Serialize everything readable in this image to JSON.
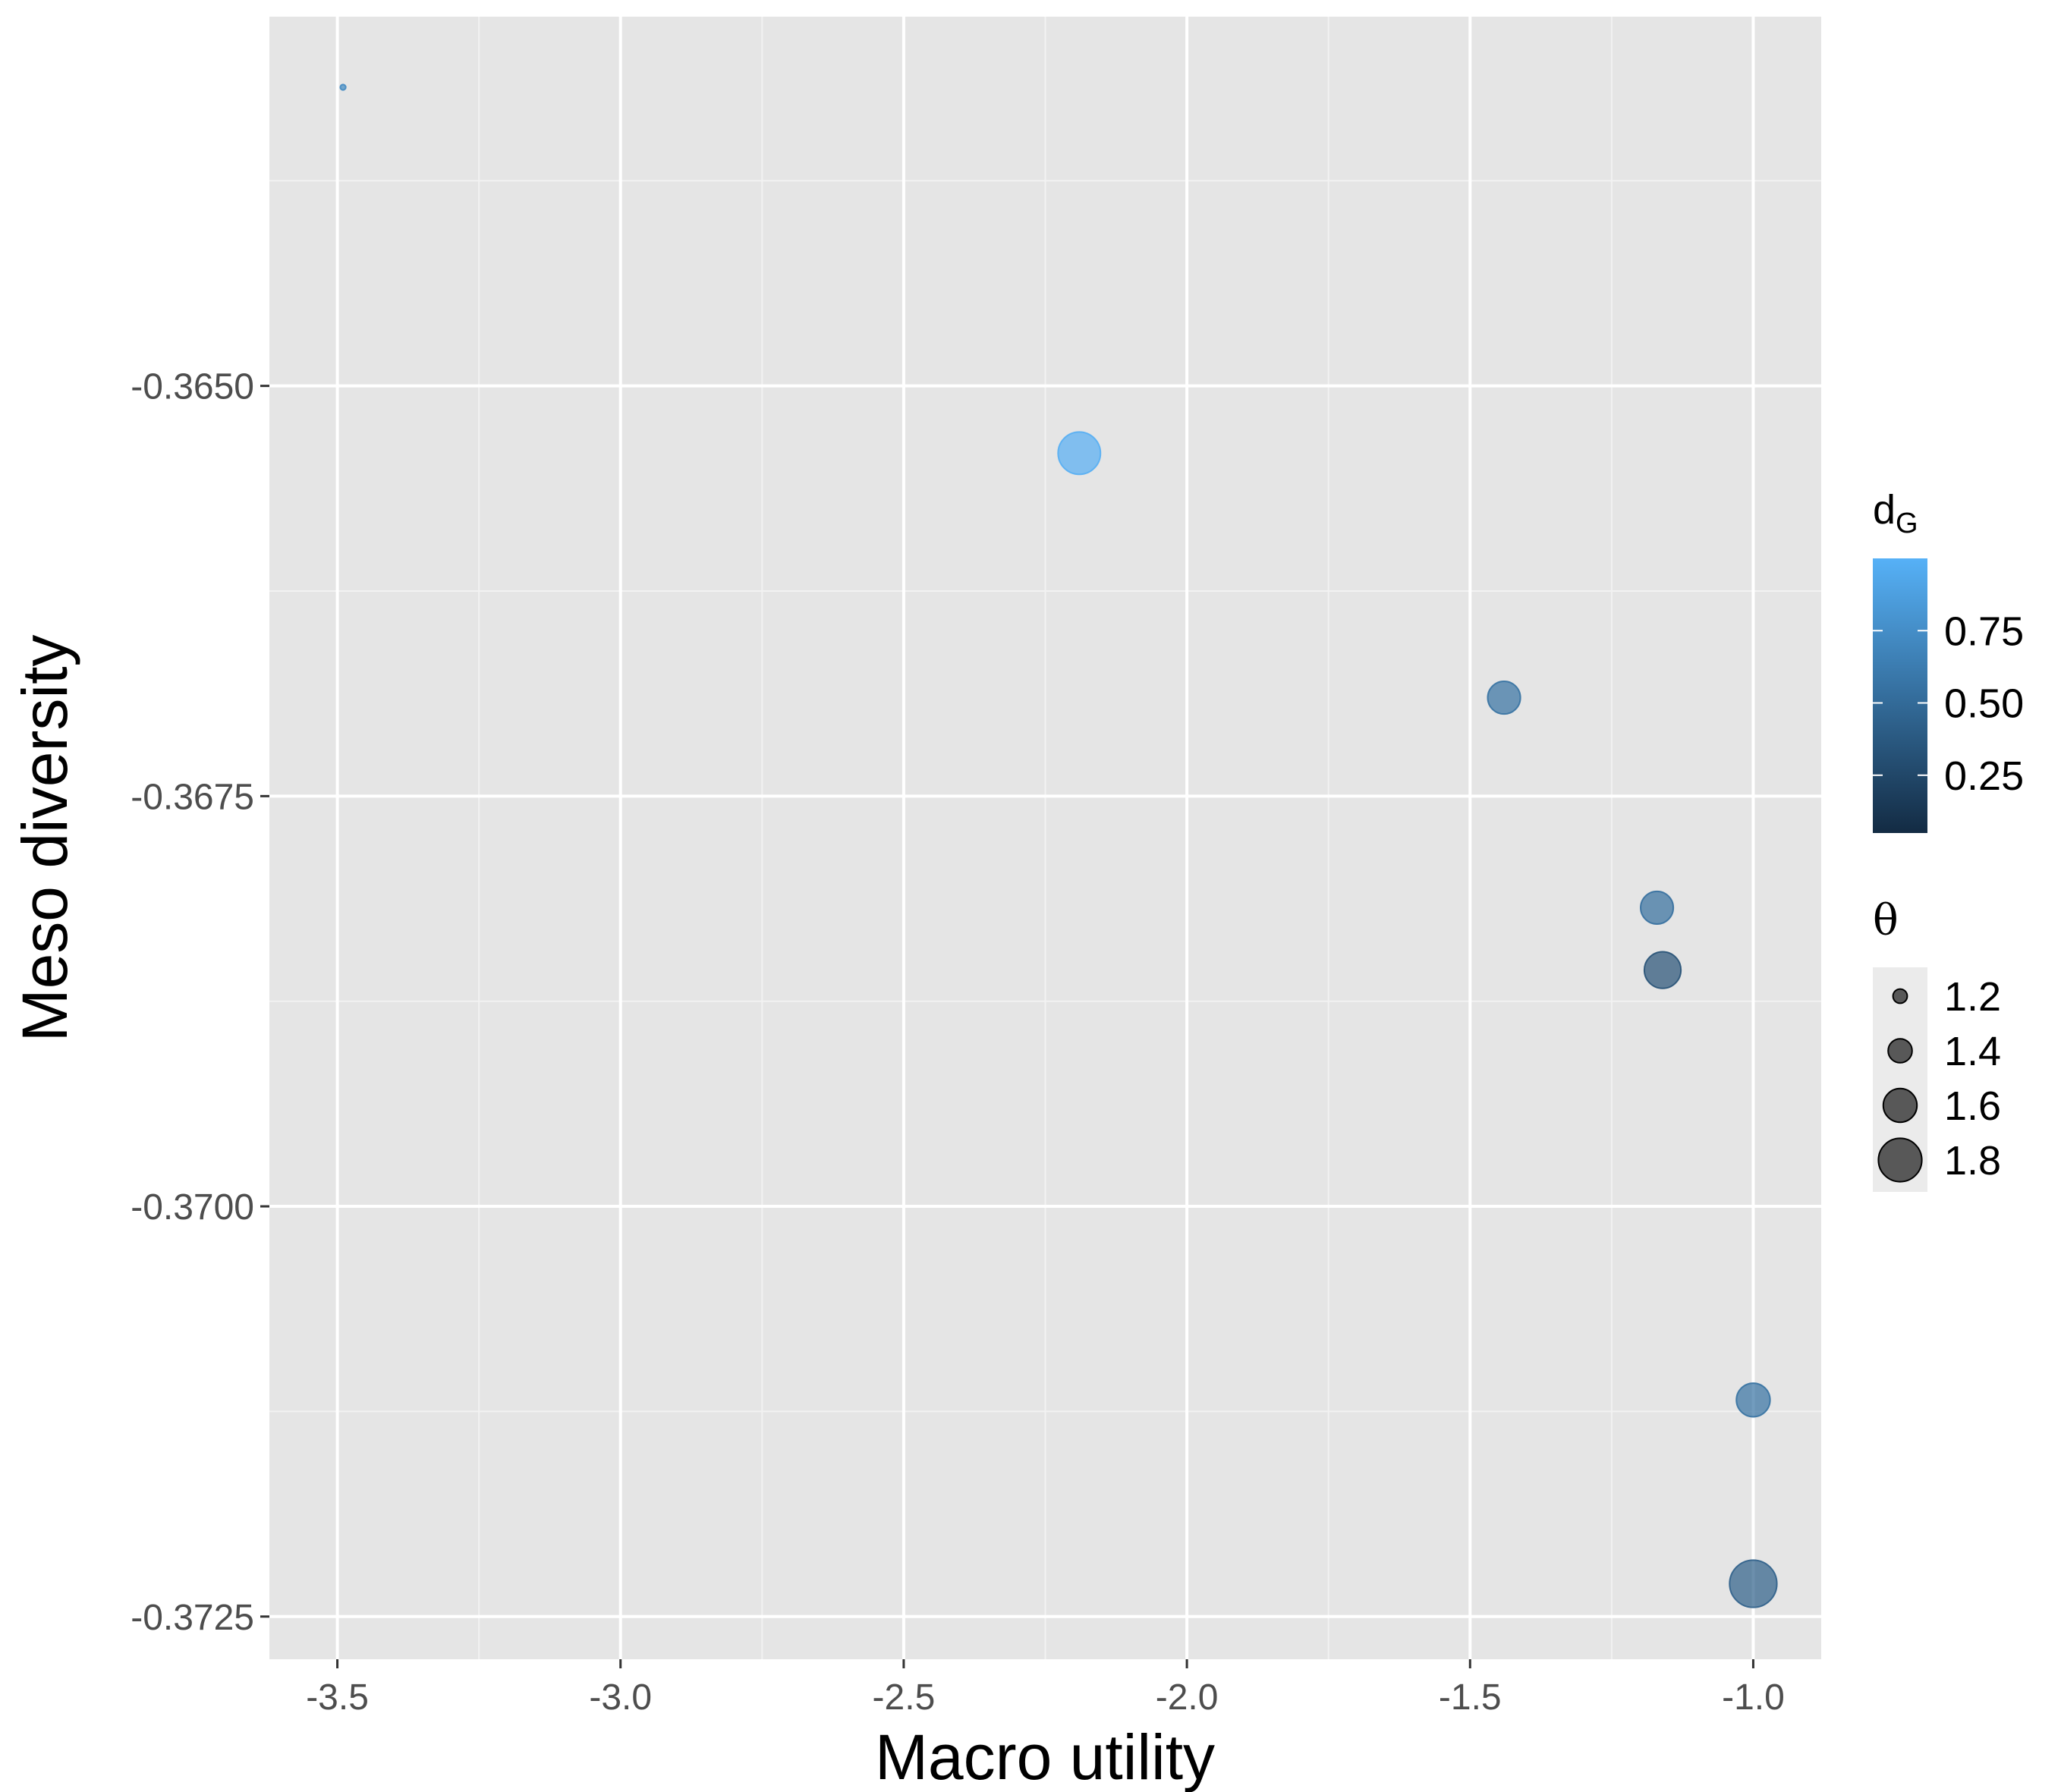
{
  "chart_data": {
    "type": "scatter",
    "title": "",
    "xlabel": "Macro utility",
    "ylabel": "Meso diversity",
    "xlim": [
      -3.62,
      -0.88
    ],
    "ylim": [
      -0.37276,
      -0.36275
    ],
    "x_ticks": [
      -3.5,
      -3.0,
      -2.5,
      -2.0,
      -1.5,
      -1.0
    ],
    "x_tick_labels": [
      "-3.5",
      "-3.0",
      "-2.5",
      "-2.0",
      "-1.5",
      "-1.0"
    ],
    "y_ticks": [
      -0.365,
      -0.3675,
      -0.37,
      -0.3725
    ],
    "y_tick_labels": [
      "-0.3650",
      "-0.3675",
      "-0.3700",
      "-0.3725"
    ],
    "grid": true,
    "points": [
      {
        "x": -3.49,
        "y": -0.36318,
        "theta": 1.02,
        "dG": 0.72
      },
      {
        "x": -2.19,
        "y": -0.36541,
        "theta": 1.78,
        "dG": 0.98
      },
      {
        "x": -1.44,
        "y": -0.3669,
        "theta": 1.58,
        "dG": 0.55
      },
      {
        "x": -1.17,
        "y": -0.36818,
        "theta": 1.58,
        "dG": 0.53
      },
      {
        "x": -1.16,
        "y": -0.36856,
        "theta": 1.66,
        "dG": 0.32
      },
      {
        "x": -1.0,
        "y": -0.37118,
        "theta": 1.6,
        "dG": 0.55
      },
      {
        "x": -1.0,
        "y": -0.3723,
        "theta": 1.88,
        "dG": 0.42
      }
    ],
    "legend_color": {
      "title_main": "d",
      "title_sub": "G",
      "range": [
        0.05,
        1.0
      ],
      "ticks": [
        0.25,
        0.5,
        0.75
      ],
      "tick_labels": [
        "0.25",
        "0.50",
        "0.75"
      ],
      "color_low": "#132b43",
      "color_high": "#56b1f7",
      "position": "right"
    },
    "legend_size": {
      "title": "θ",
      "values": [
        1.2,
        1.4,
        1.6,
        1.8
      ],
      "labels": [
        "1.2",
        "1.4",
        "1.6",
        "1.8"
      ],
      "position": "right"
    }
  },
  "colors": {
    "panel_background": "#e5e5e5",
    "grid_major": "#ffffff",
    "grid_minor": "#f2f2f2",
    "legend_key_background": "#ebebeb",
    "size_legend_point": "#333333"
  }
}
